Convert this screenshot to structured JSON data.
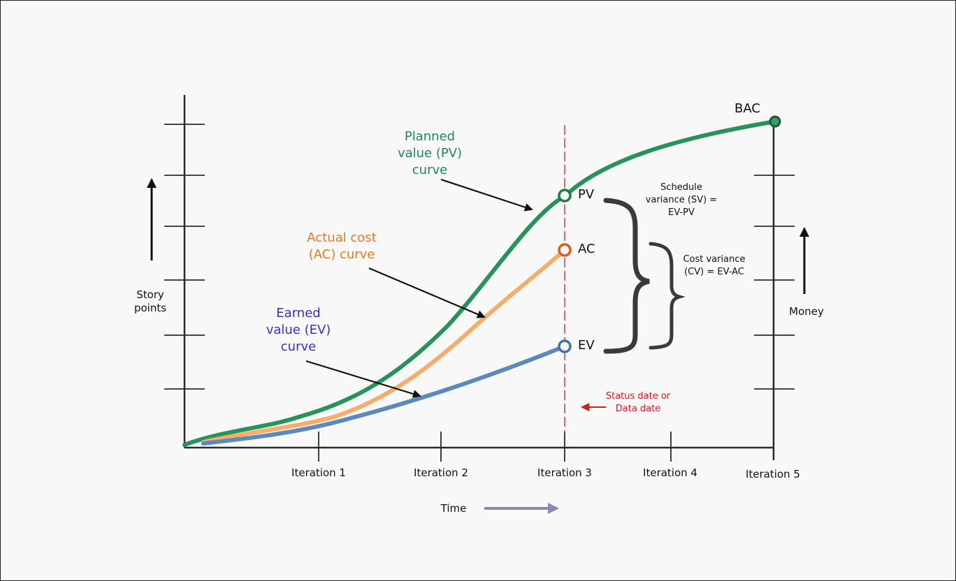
{
  "diagram": {
    "colors": {
      "pv": "#27925a",
      "ac": "#f5ad68",
      "ev": "#5b89bd",
      "status_line": "#d8606a",
      "status_text": "#e01818",
      "axis": "#2a2a2a",
      "time_arrow": "#8e88a8"
    },
    "left_axis_label": "Story\npoints",
    "right_axis_label": "Money",
    "x_axis_label": "Time",
    "iterations": [
      "Iteration 1",
      "Iteration 2",
      "Iteration 3",
      "Iteration 4",
      "Iteration 5"
    ],
    "curve_labels": {
      "pv": "Planned\nvalue (PV)\ncurve",
      "ac": "Actual cost\n(AC) curve",
      "ev": "Earned\nvalue (EV)\ncurve"
    },
    "point_labels": {
      "pv": "PV",
      "ac": "AC",
      "ev": "EV",
      "bac": "BAC"
    },
    "variance_labels": {
      "sv": "Schedule\nvariance (SV) =\nEV-PV",
      "cv": "Cost variance\n(CV) = EV-AC"
    },
    "status_date_label": "Status date or\nData date"
  }
}
